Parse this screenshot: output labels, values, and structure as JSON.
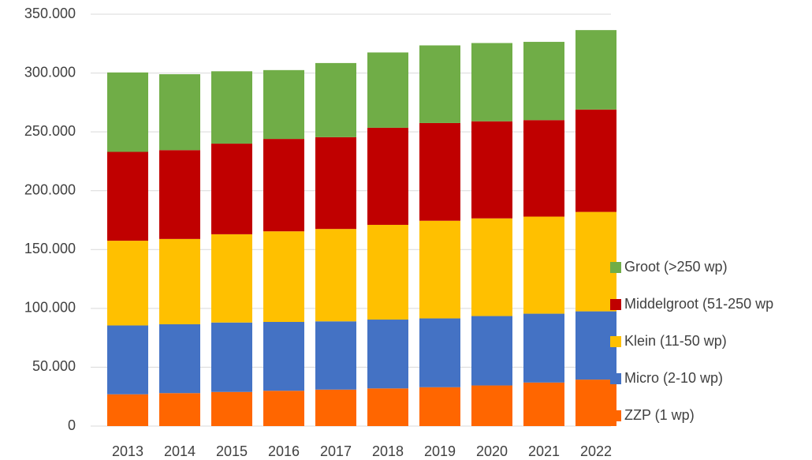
{
  "chart_data": {
    "type": "stacked_bar",
    "categories": [
      "2013",
      "2014",
      "2015",
      "2016",
      "2017",
      "2018",
      "2019",
      "2020",
      "2021",
      "2022"
    ],
    "series": [
      {
        "name": "ZZP (1 wp)",
        "color": "#ff6600",
        "values": [
          27000,
          28000,
          29000,
          30000,
          31000,
          32000,
          33000,
          34500,
          37000,
          39500
        ]
      },
      {
        "name": "Micro (2-10 wp)",
        "color": "#4472c4",
        "values": [
          58500,
          58500,
          59000,
          58500,
          58000,
          58500,
          58500,
          59000,
          58500,
          58000
        ]
      },
      {
        "name": "Klein (11-50 wp)",
        "color": "#ffc000",
        "values": [
          72000,
          72500,
          75000,
          77000,
          78500,
          80500,
          83000,
          83000,
          82500,
          84500
        ]
      },
      {
        "name": "Middelgroot (51-250 wp",
        "color": "#c00000",
        "values": [
          75500,
          75500,
          77000,
          78500,
          78000,
          82500,
          83000,
          82500,
          82000,
          87000
        ]
      },
      {
        "name": "Groot (>250 wp)",
        "color": "#70ad47",
        "values": [
          67500,
          64500,
          61500,
          58500,
          63000,
          64000,
          66000,
          66500,
          66500,
          67500
        ]
      }
    ],
    "ylim": [
      0,
      350000
    ],
    "yticks": [
      0,
      {
        "value": 50000,
        "label": "50.000"
      },
      {
        "value": 100000,
        "label": "100.000"
      },
      {
        "value": 150000,
        "label": "150.000"
      },
      {
        "value": 200000,
        "label": "200.000"
      },
      {
        "value": 250000,
        "label": "250.000"
      },
      {
        "value": 300000,
        "label": "300.000"
      },
      {
        "value": 350000,
        "label": "350.000"
      }
    ],
    "grid": true,
    "legend": "right"
  }
}
